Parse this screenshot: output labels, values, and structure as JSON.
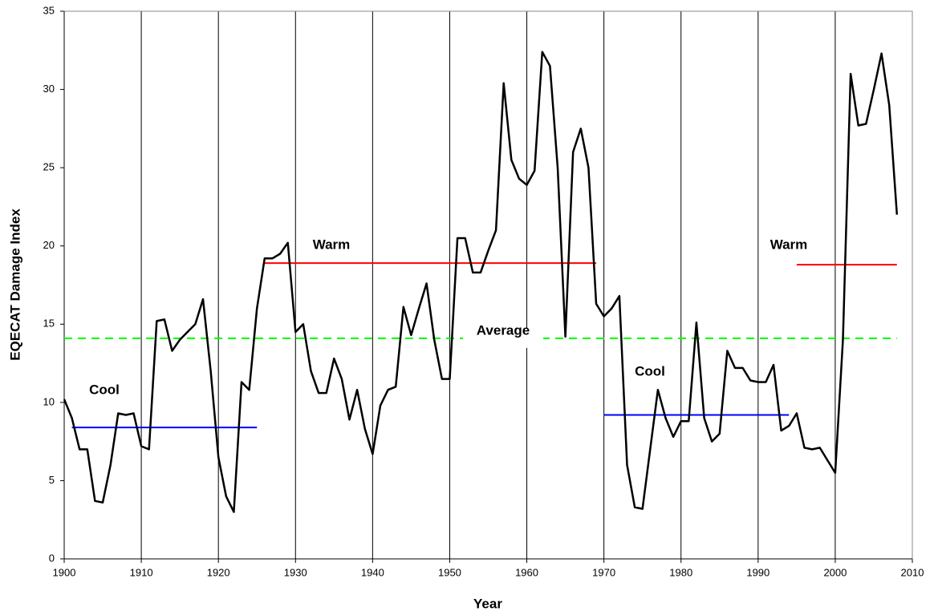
{
  "chart_data": {
    "type": "line",
    "x_label": "Year",
    "y_label": "EQECAT Damage Index",
    "x": [
      1900,
      1901,
      1902,
      1903,
      1904,
      1905,
      1906,
      1907,
      1908,
      1909,
      1910,
      1911,
      1912,
      1913,
      1914,
      1915,
      1916,
      1917,
      1918,
      1919,
      1920,
      1921,
      1922,
      1923,
      1924,
      1925,
      1926,
      1927,
      1928,
      1929,
      1930,
      1931,
      1932,
      1933,
      1934,
      1935,
      1936,
      1937,
      1938,
      1939,
      1940,
      1941,
      1942,
      1943,
      1944,
      1945,
      1946,
      1947,
      1948,
      1949,
      1950,
      1951,
      1952,
      1953,
      1954,
      1955,
      1956,
      1957,
      1958,
      1959,
      1960,
      1961,
      1962,
      1963,
      1964,
      1965,
      1966,
      1967,
      1968,
      1969,
      1970,
      1971,
      1972,
      1973,
      1974,
      1975,
      1976,
      1977,
      1978,
      1979,
      1980,
      1981,
      1982,
      1983,
      1984,
      1985,
      1986,
      1987,
      1988,
      1989,
      1990,
      1991,
      1992,
      1993,
      1994,
      1995,
      1996,
      1997,
      1998,
      1999,
      2000,
      2001,
      2002,
      2003,
      2004,
      2005,
      2006,
      2007,
      2008
    ],
    "series": [
      {
        "color": "#000000",
        "values": [
          10.2,
          9,
          7,
          7,
          3.7,
          3.6,
          6,
          9.3,
          9.2,
          9.3,
          7.2,
          7,
          15.2,
          15.3,
          13.3,
          14,
          14.5,
          15,
          16.6,
          12,
          6.5,
          4,
          3,
          11.3,
          10.8,
          16,
          19.2,
          19.2,
          19.5,
          20.2,
          14.5,
          15,
          12,
          10.6,
          10.6,
          12.8,
          11.5,
          8.9,
          10.8,
          8.3,
          6.7,
          9.8,
          10.8,
          11,
          16.1,
          14.3,
          16,
          17.6,
          14,
          11.5,
          11.5,
          20.5,
          20.5,
          18.3,
          18.3,
          19.7,
          21,
          30.4,
          25.5,
          24.3,
          23.9,
          24.8,
          32.4,
          31.5,
          25,
          14.2,
          26,
          27.5,
          25,
          16.3,
          15.5,
          16,
          16.8,
          6,
          3.3,
          3.2,
          7,
          10.8,
          9,
          7.8,
          8.8,
          8.8,
          15.1,
          9,
          7.5,
          8,
          13.3,
          12.2,
          12.2,
          11.4,
          11.3,
          11.3,
          12.4,
          8.2,
          8.5,
          9.3,
          7.1,
          7,
          7.1,
          6.3,
          5.5,
          14,
          31,
          27.7,
          27.8,
          30,
          32.3,
          29,
          22
        ]
      }
    ],
    "reference_lines": [
      {
        "label": "Warm",
        "value": 18.9,
        "start": 1926,
        "end": 1969,
        "color": "#ff0000",
        "dashed": false
      },
      {
        "label": "Warm",
        "value": 18.8,
        "start": 1995,
        "end": 2008,
        "color": "#ff0000",
        "dashed": false
      },
      {
        "label": "Cool",
        "value": 8.4,
        "start": 1901,
        "end": 1925,
        "color": "#0000ff",
        "dashed": false
      },
      {
        "label": "Cool",
        "value": 9.2,
        "start": 1970,
        "end": 1994,
        "color": "#0000ff",
        "dashed": false
      },
      {
        "label": "Average",
        "value": 14.1,
        "start": 1900,
        "end": 2008,
        "color": "#00ff00",
        "dashed": true
      }
    ],
    "xlim": [
      1900,
      2010
    ],
    "xticks": [
      1900,
      1910,
      1920,
      1930,
      1940,
      1950,
      1960,
      1970,
      1980,
      1990,
      2000,
      2010
    ],
    "ylim": [
      0,
      35
    ],
    "yticks": [
      0,
      5,
      10,
      15,
      20,
      25,
      30,
      35
    ],
    "grid": "x"
  }
}
